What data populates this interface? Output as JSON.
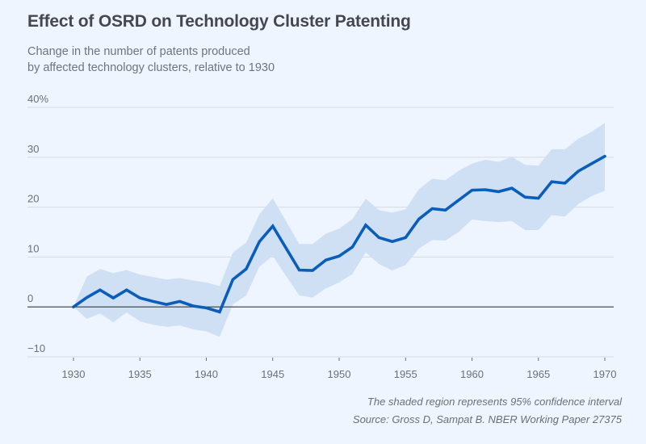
{
  "header": {
    "title": "Effect of OSRD on Technology Cluster Patenting",
    "subtitle_lines": [
      "Change in the number of patents produced",
      "by affected technology clusters, relative to 1930"
    ]
  },
  "footer": {
    "note": "The shaded region represents 95% confidence interval",
    "source": "Source: Gross D, Sampat B. NBER Working Paper 27375"
  },
  "colors": {
    "background": "#eef5fe",
    "line": "#0a5db8",
    "band": "#cfe0f5",
    "grid": "#d5dbe3",
    "zero_line": "#3a3a3a"
  },
  "chart_data": {
    "type": "line",
    "title": "Effect of OSRD on Technology Cluster Patenting",
    "subtitle": "Change in the number of patents produced by affected technology clusters, relative to 1930",
    "xlabel": "",
    "ylabel": "",
    "xlim": [
      1930,
      1970
    ],
    "ylim": [
      -10,
      40
    ],
    "xticks": [
      1930,
      1935,
      1940,
      1945,
      1950,
      1955,
      1960,
      1965,
      1970
    ],
    "yticks": [
      -10,
      0,
      10,
      20,
      30,
      40
    ],
    "ytick_labels": [
      "−10",
      "0",
      "10",
      "20",
      "30",
      "40%"
    ],
    "grid": "horizontal",
    "x": [
      1930,
      1931,
      1932,
      1933,
      1934,
      1935,
      1936,
      1937,
      1938,
      1939,
      1940,
      1941,
      1942,
      1943,
      1944,
      1945,
      1946,
      1947,
      1948,
      1949,
      1950,
      1951,
      1952,
      1953,
      1954,
      1955,
      1956,
      1957,
      1958,
      1959,
      1960,
      1961,
      1962,
      1963,
      1964,
      1965,
      1966,
      1967,
      1968,
      1969,
      1970
    ],
    "series": [
      {
        "name": "Estimate",
        "values": [
          0,
          1.9,
          3.4,
          1.8,
          3.4,
          1.8,
          1.1,
          0.5,
          1.1,
          0.2,
          -0.2,
          -1.0,
          5.5,
          7.6,
          13.1,
          16.2,
          11.8,
          7.4,
          7.3,
          9.4,
          10.2,
          12.0,
          16.4,
          13.9,
          13.1,
          13.9,
          17.6,
          19.7,
          19.4,
          21.4,
          23.4,
          23.5,
          23.1,
          23.8,
          22.0,
          21.8,
          25.1,
          24.8,
          27.2,
          28.7,
          30.2
        ]
      },
      {
        "name": "95% CI upper",
        "values": [
          0,
          6.1,
          7.6,
          6.8,
          7.4,
          6.5,
          6.0,
          5.5,
          5.8,
          5.3,
          4.9,
          4.2,
          10.9,
          12.9,
          18.6,
          21.8,
          17.2,
          12.6,
          12.6,
          14.7,
          15.7,
          17.6,
          21.7,
          19.4,
          18.9,
          19.6,
          23.6,
          25.7,
          25.4,
          27.3,
          28.7,
          29.5,
          29.1,
          30.1,
          28.5,
          28.3,
          31.6,
          31.6,
          33.7,
          35.1,
          36.9
        ]
      },
      {
        "name": "95% CI lower",
        "values": [
          0,
          -2.4,
          -1.3,
          -3.1,
          -1.1,
          -2.9,
          -3.6,
          -4.0,
          -3.7,
          -4.5,
          -4.9,
          -6.0,
          0.5,
          2.3,
          8.1,
          10.2,
          6.2,
          2.3,
          1.9,
          3.7,
          4.9,
          6.6,
          10.9,
          8.6,
          7.3,
          8.4,
          11.7,
          13.4,
          13.3,
          15.0,
          17.5,
          17.2,
          17.0,
          17.2,
          15.4,
          15.4,
          18.4,
          18.1,
          20.6,
          22.2,
          23.3
        ]
      }
    ],
    "annotations": [
      "The shaded region represents 95% confidence interval",
      "Source: Gross D, Sampat B. NBER Working Paper 27375"
    ]
  }
}
